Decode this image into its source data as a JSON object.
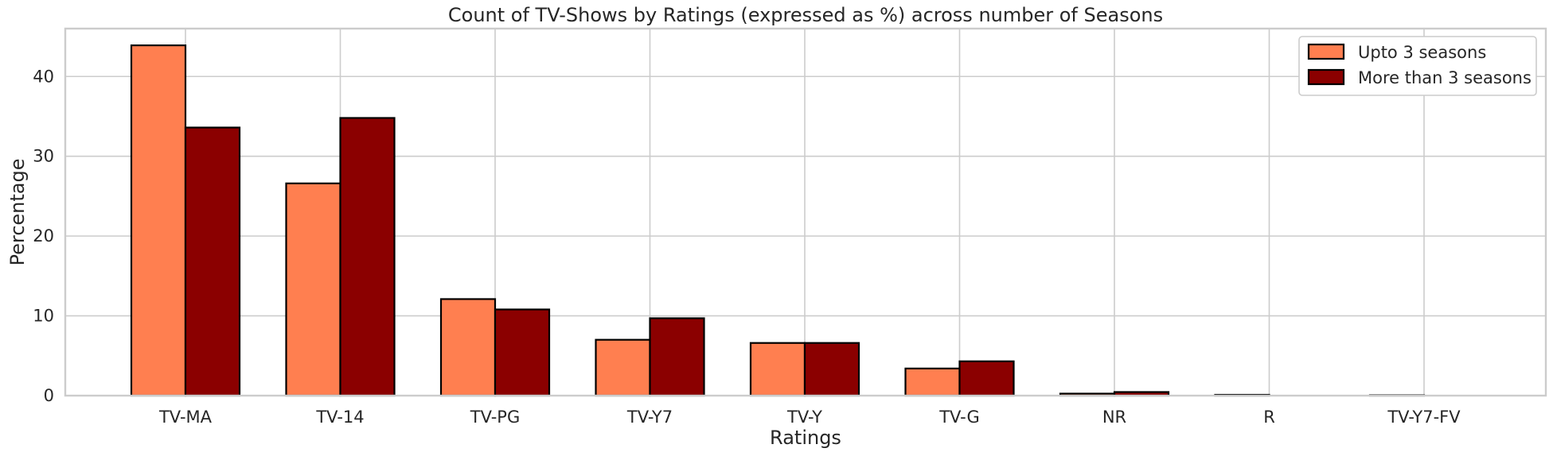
{
  "chart_data": {
    "type": "bar",
    "title": "Count of TV-Shows by Ratings (expressed as %) across number of Seasons",
    "xlabel": "Ratings",
    "ylabel": "Percentage",
    "categories": [
      "TV-MA",
      "TV-14",
      "TV-PG",
      "TV-Y7",
      "TV-Y",
      "TV-G",
      "NR",
      "R",
      "TV-Y7-FV"
    ],
    "series": [
      {
        "name": "Upto 3 seasons",
        "color": "#ff7f50",
        "values": [
          43.9,
          26.6,
          12.1,
          7.0,
          6.6,
          3.4,
          0.25,
          0.1,
          0.05
        ]
      },
      {
        "name": "More than 3 seasons",
        "color": "#8b0000",
        "values": [
          33.6,
          34.8,
          10.8,
          9.7,
          6.6,
          4.3,
          0.45,
          0.0,
          0.0
        ]
      }
    ],
    "ylim": [
      0,
      46
    ],
    "yticks": [
      0,
      10,
      20,
      30,
      40
    ],
    "grid": true,
    "legend": "top-right"
  }
}
